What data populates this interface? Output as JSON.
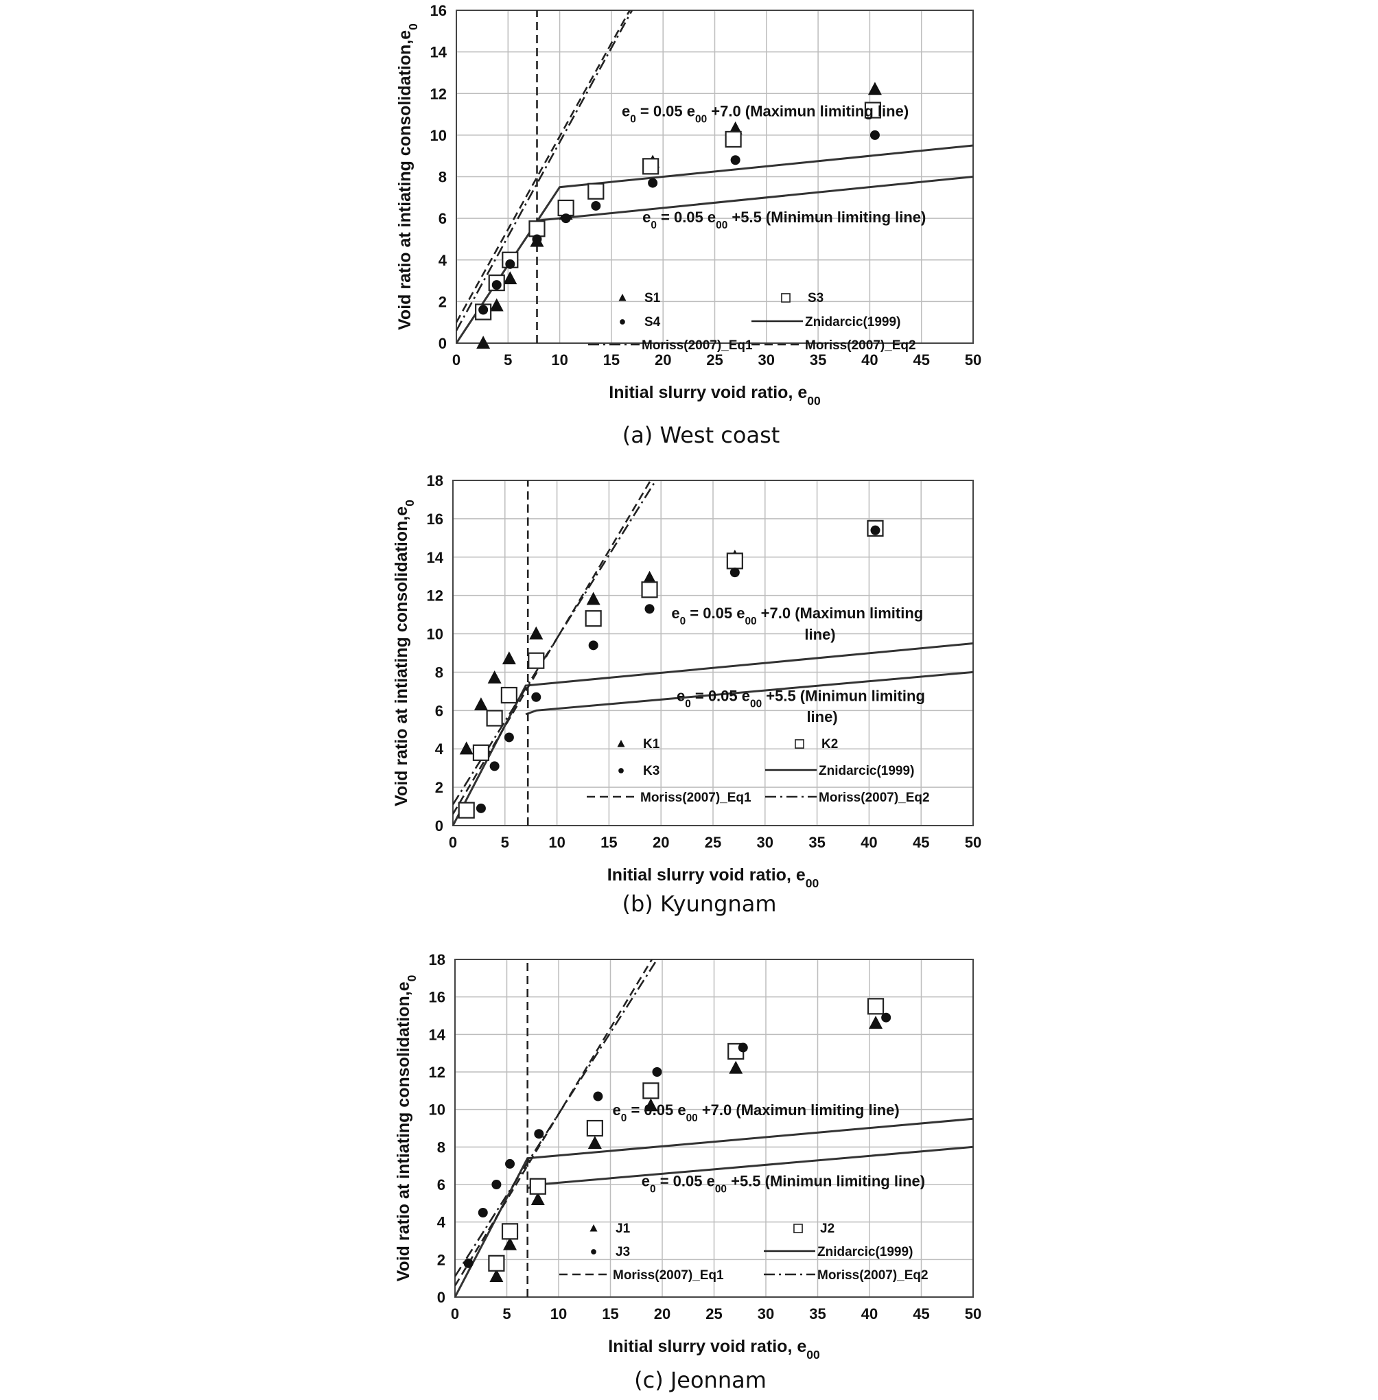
{
  "chart_data": [
    {
      "type": "scatter",
      "caption": "(a) West coast",
      "xlabel": "Initial slurry void ratio, e00",
      "ylabel": "Void ratio at intiating consolidation,e0",
      "xlim": [
        0,
        50
      ],
      "ylim": [
        0,
        16
      ],
      "x_ticks": [
        0,
        5,
        10,
        15,
        20,
        25,
        30,
        35,
        40,
        45,
        50
      ],
      "y_ticks": [
        0,
        2,
        4,
        6,
        8,
        10,
        12,
        14,
        16
      ],
      "grid": true,
      "annotations": [
        {
          "text": "e0 = 0.05 e00 +7.0 (Maximun limiting line)",
          "x": 16,
          "y": 10.9
        },
        {
          "text": "e0 = 0.05 e00 +5.5 (Minimun limiting line)",
          "x": 18,
          "y": 5.8
        }
      ],
      "legend": [
        {
          "label": "S1",
          "marker": "triangle"
        },
        {
          "label": "S3",
          "marker": "square"
        },
        {
          "label": "S4",
          "marker": "circle"
        },
        {
          "label": "Znidarcic(1999)",
          "style": "solid"
        },
        {
          "label": "Moriss(2007)_Eq1",
          "style": "dashdot"
        },
        {
          "label": "Moriss(2007)_Eq2",
          "style": "dash"
        }
      ],
      "series": [
        {
          "name": "S1",
          "marker": "triangle",
          "points": [
            [
              2.6,
              0
            ],
            [
              3.9,
              1.8
            ],
            [
              5.2,
              3.1
            ],
            [
              7.8,
              4.9
            ],
            [
              10.6,
              6.2
            ],
            [
              13.5,
              7.2
            ],
            [
              19,
              8.7
            ],
            [
              27,
              10.3
            ],
            [
              40.5,
              12.2
            ]
          ]
        },
        {
          "name": "S3",
          "marker": "square",
          "points": [
            [
              2.6,
              1.5
            ],
            [
              3.9,
              2.9
            ],
            [
              5.2,
              4.0
            ],
            [
              7.8,
              5.5
            ],
            [
              10.6,
              6.5
            ],
            [
              13.5,
              7.3
            ],
            [
              18.8,
              8.5
            ],
            [
              26.8,
              9.8
            ],
            [
              40.3,
              11.2
            ]
          ]
        },
        {
          "name": "S4",
          "marker": "circle",
          "points": [
            [
              2.6,
              1.6
            ],
            [
              3.9,
              2.8
            ],
            [
              5.2,
              3.8
            ],
            [
              7.8,
              5.0
            ],
            [
              10.6,
              6.0
            ],
            [
              13.5,
              6.6
            ],
            [
              19,
              7.7
            ],
            [
              27,
              8.8
            ],
            [
              40.5,
              10.0
            ]
          ]
        }
      ],
      "lines": [
        {
          "name": "Znidarcic(1999) max",
          "style": "solid",
          "points": [
            [
              0,
              0
            ],
            [
              10,
              7.5
            ],
            [
              50,
              9.5
            ]
          ]
        },
        {
          "name": "Znidarcic(1999) min",
          "style": "solid",
          "points": [
            [
              7.8,
              5.9
            ],
            [
              10,
              6.0
            ],
            [
              50,
              8.0
            ]
          ]
        },
        {
          "name": "Moriss(2007)_Eq1",
          "style": "dashdot",
          "points": [
            [
              0,
              0.6
            ],
            [
              17,
              16
            ]
          ]
        },
        {
          "name": "Moriss(2007)_Eq2",
          "style": "dash",
          "points": [
            [
              0,
              1.0
            ],
            [
              17,
              16.2
            ]
          ]
        },
        {
          "name": "vertical",
          "style": "dash",
          "points": [
            [
              7.8,
              0
            ],
            [
              7.8,
              16
            ]
          ]
        }
      ]
    },
    {
      "type": "scatter",
      "caption": "(b) Kyungnam",
      "xlabel": "Initial slurry void ratio, e00",
      "ylabel": "Void ratio at intiating consolidation,e0",
      "xlim": [
        0,
        50
      ],
      "ylim": [
        0,
        18
      ],
      "x_ticks": [
        0,
        5,
        10,
        15,
        20,
        25,
        30,
        35,
        40,
        45,
        50
      ],
      "y_ticks": [
        0,
        2,
        4,
        6,
        8,
        10,
        12,
        14,
        16,
        18
      ],
      "grid": true,
      "annotations": [
        {
          "text": "e0 = 0.05 e00 +7.0 (Maximun limiting",
          "x": 21,
          "y": 10.8
        },
        {
          "text": "line)",
          "x": 33.8,
          "y": 9.7
        },
        {
          "text": "e0 = 0.05 e00 +5.5 (Minimun limiting",
          "x": 21.5,
          "y": 6.5
        },
        {
          "text": "line)",
          "x": 34,
          "y": 5.4
        }
      ],
      "legend": [
        {
          "label": "K1",
          "marker": "triangle"
        },
        {
          "label": "K2",
          "marker": "square"
        },
        {
          "label": "K3",
          "marker": "circle"
        },
        {
          "label": "Znidarcic(1999)",
          "style": "solid"
        },
        {
          "label": "Moriss(2007)_Eq1",
          "style": "dash"
        },
        {
          "label": "Moriss(2007)_Eq2",
          "style": "dashdot"
        }
      ],
      "series": [
        {
          "name": "K1",
          "marker": "triangle",
          "points": [
            [
              1.3,
              4.0
            ],
            [
              2.7,
              6.3
            ],
            [
              4,
              7.7
            ],
            [
              5.4,
              8.7
            ],
            [
              8,
              10.0
            ],
            [
              13.5,
              11.8
            ],
            [
              18.9,
              12.9
            ],
            [
              27.1,
              14.0
            ],
            [
              40.6,
              15.5
            ]
          ]
        },
        {
          "name": "K2",
          "marker": "square",
          "points": [
            [
              1.3,
              0.8
            ],
            [
              2.7,
              3.8
            ],
            [
              4,
              5.6
            ],
            [
              5.4,
              6.8
            ],
            [
              8,
              8.6
            ],
            [
              13.5,
              10.8
            ],
            [
              18.9,
              12.3
            ],
            [
              27.1,
              13.8
            ],
            [
              40.6,
              15.5
            ]
          ]
        },
        {
          "name": "K3",
          "marker": "circle",
          "points": [
            [
              2.7,
              0.9
            ],
            [
              4,
              3.1
            ],
            [
              5.4,
              4.6
            ],
            [
              8,
              6.7
            ],
            [
              13.5,
              9.4
            ],
            [
              18.9,
              11.3
            ],
            [
              27.1,
              13.2
            ],
            [
              40.6,
              15.4
            ]
          ]
        }
      ],
      "lines": [
        {
          "name": "Znidarcic(1999) max",
          "style": "solid",
          "points": [
            [
              0,
              0
            ],
            [
              7,
              7.3
            ],
            [
              50,
              9.5
            ]
          ]
        },
        {
          "name": "Znidarcic(1999) min",
          "style": "solid",
          "points": [
            [
              7,
              5.8
            ],
            [
              8,
              6.0
            ],
            [
              50,
              8.0
            ]
          ]
        },
        {
          "name": "Moriss(2007)_Eq1",
          "style": "dash",
          "points": [
            [
              0,
              0.6
            ],
            [
              19,
              18
            ]
          ]
        },
        {
          "name": "Moriss(2007)_Eq2",
          "style": "dashdot",
          "points": [
            [
              0,
              1.1
            ],
            [
              19.5,
              18
            ]
          ]
        },
        {
          "name": "vertical",
          "style": "dash",
          "points": [
            [
              7.2,
              0
            ],
            [
              7.2,
              18
            ]
          ]
        }
      ]
    },
    {
      "type": "scatter",
      "caption": "(c) Jeonnam",
      "xlabel": "Initial slurry void ratio, e00",
      "ylabel": "Void ratio at intiating consolidation,e0",
      "xlim": [
        0,
        50
      ],
      "ylim": [
        0,
        18
      ],
      "x_ticks": [
        0,
        5,
        10,
        15,
        20,
        25,
        30,
        35,
        40,
        45,
        50
      ],
      "y_ticks": [
        0,
        2,
        4,
        6,
        8,
        10,
        12,
        14,
        16,
        18
      ],
      "grid": true,
      "annotations": [
        {
          "text": "e0 = 0.05 e00 +7.0 (Maximun limiting line)",
          "x": 15.2,
          "y": 9.7
        },
        {
          "text": "e0 = 0.05 e00 +5.5 (Minimun limiting line)",
          "x": 18,
          "y": 5.9
        }
      ],
      "legend": [
        {
          "label": "J1",
          "marker": "triangle"
        },
        {
          "label": "J2",
          "marker": "square"
        },
        {
          "label": "J3",
          "marker": "circle"
        },
        {
          "label": "Znidarcic(1999)",
          "style": "solid"
        },
        {
          "label": "Moriss(2007)_Eq1",
          "style": "dash"
        },
        {
          "label": "Moriss(2007)_Eq2",
          "style": "dashdot"
        }
      ],
      "series": [
        {
          "name": "J1",
          "marker": "triangle",
          "points": [
            [
              4,
              1.1
            ],
            [
              5.3,
              2.8
            ],
            [
              8,
              5.2
            ],
            [
              13.5,
              8.2
            ],
            [
              18.9,
              10.2
            ],
            [
              27.1,
              12.2
            ],
            [
              40.6,
              14.6
            ]
          ]
        },
        {
          "name": "J2",
          "marker": "square",
          "points": [
            [
              4,
              1.8
            ],
            [
              5.3,
              3.5
            ],
            [
              8,
              5.9
            ],
            [
              13.5,
              9.0
            ],
            [
              18.9,
              11.0
            ],
            [
              27.1,
              13.1
            ],
            [
              40.6,
              15.5
            ]
          ]
        },
        {
          "name": "J3",
          "marker": "circle",
          "points": [
            [
              1.3,
              1.8
            ],
            [
              2.7,
              4.5
            ],
            [
              4,
              6.0
            ],
            [
              5.3,
              7.1
            ],
            [
              8.1,
              8.7
            ],
            [
              13.8,
              10.7
            ],
            [
              19.5,
              12.0
            ],
            [
              27.8,
              13.3
            ],
            [
              41.6,
              14.9
            ]
          ]
        }
      ],
      "lines": [
        {
          "name": "Znidarcic(1999) max",
          "style": "solid",
          "points": [
            [
              0,
              0
            ],
            [
              7,
              7.4
            ],
            [
              50,
              9.5
            ]
          ]
        },
        {
          "name": "Znidarcic(1999) min",
          "style": "solid",
          "points": [
            [
              7,
              5.8
            ],
            [
              8,
              6.0
            ],
            [
              50,
              8.0
            ]
          ]
        },
        {
          "name": "Moriss(2007)_Eq1",
          "style": "dash",
          "points": [
            [
              0,
              0.6
            ],
            [
              19,
              18
            ]
          ]
        },
        {
          "name": "Moriss(2007)_Eq2",
          "style": "dashdot",
          "points": [
            [
              0,
              1.1
            ],
            [
              19.5,
              18
            ]
          ]
        },
        {
          "name": "vertical",
          "style": "dash",
          "points": [
            [
              7,
              0
            ],
            [
              7,
              18
            ]
          ]
        }
      ]
    }
  ]
}
